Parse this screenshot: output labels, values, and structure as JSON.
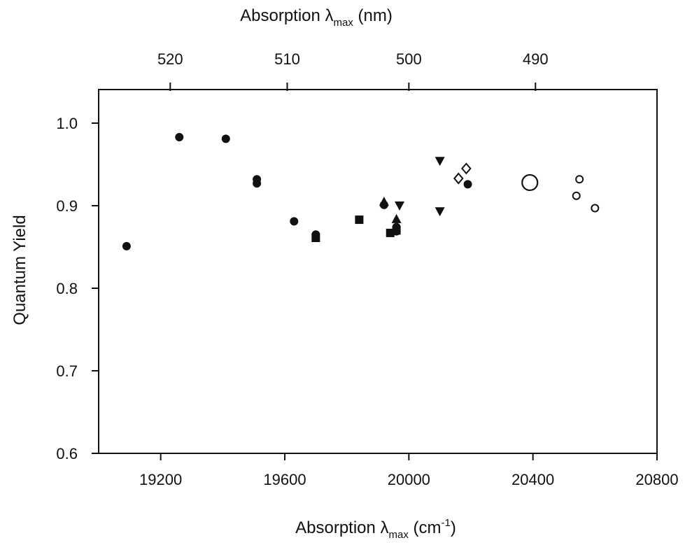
{
  "chart_data": {
    "type": "scatter",
    "title": "",
    "xlabel": {
      "prefix": "Absorption ",
      "lambda": "λ",
      "sub": "max",
      "unit_open": "  (cm",
      "sup": "-1",
      "unit_close": ")"
    },
    "x2label": {
      "prefix": "Absorption ",
      "lambda": "λ",
      "sub": "max",
      "unit": "  (nm)"
    },
    "ylabel": "Quantum Yield",
    "xlim": [
      19000,
      20800
    ],
    "ylim": [
      0.6,
      1.05
    ],
    "x_ticks": [
      19200,
      19600,
      20000,
      20400,
      20800
    ],
    "x_tick_labels": [
      "19200",
      "19600",
      "20000",
      "20400",
      "20800"
    ],
    "y_ticks": [
      0.6,
      0.7,
      0.8,
      0.9,
      1.0
    ],
    "y_tick_labels": [
      "0.6",
      "0.7",
      "0.8",
      "0.9",
      "1.0"
    ],
    "x2_ticks_nm": [
      520,
      510,
      500,
      490
    ],
    "x2_tick_labels": [
      "520",
      "510",
      "500",
      "490"
    ],
    "grid": false,
    "legend": "none",
    "marker_color": "#111111",
    "series": [
      {
        "marker": "filled-circle",
        "points": [
          {
            "x": 19090,
            "y": 0.851
          },
          {
            "x": 19260,
            "y": 0.983
          },
          {
            "x": 19410,
            "y": 0.981
          },
          {
            "x": 19510,
            "y": 0.932
          },
          {
            "x": 19510,
            "y": 0.927
          },
          {
            "x": 19630,
            "y": 0.881
          },
          {
            "x": 19700,
            "y": 0.865
          },
          {
            "x": 19920,
            "y": 0.901
          },
          {
            "x": 19960,
            "y": 0.874
          },
          {
            "x": 19960,
            "y": 0.869
          },
          {
            "x": 20190,
            "y": 0.926
          }
        ]
      },
      {
        "marker": "filled-square",
        "points": [
          {
            "x": 19700,
            "y": 0.861
          },
          {
            "x": 19840,
            "y": 0.883
          },
          {
            "x": 19940,
            "y": 0.867
          },
          {
            "x": 19960,
            "y": 0.87
          }
        ]
      },
      {
        "marker": "filled-triangle-up",
        "points": [
          {
            "x": 19920,
            "y": 0.905
          },
          {
            "x": 19960,
            "y": 0.884
          }
        ]
      },
      {
        "marker": "filled-triangle-down",
        "points": [
          {
            "x": 19970,
            "y": 0.9
          },
          {
            "x": 20100,
            "y": 0.954
          },
          {
            "x": 20100,
            "y": 0.893
          }
        ]
      },
      {
        "marker": "open-diamond",
        "points": [
          {
            "x": 20160,
            "y": 0.933
          },
          {
            "x": 20185,
            "y": 0.945
          }
        ]
      },
      {
        "marker": "open-circle-large",
        "points": [
          {
            "x": 20390,
            "y": 0.928
          }
        ]
      },
      {
        "marker": "open-circle",
        "points": [
          {
            "x": 20540,
            "y": 0.912
          },
          {
            "x": 20550,
            "y": 0.932
          },
          {
            "x": 20600,
            "y": 0.897
          }
        ]
      }
    ]
  }
}
